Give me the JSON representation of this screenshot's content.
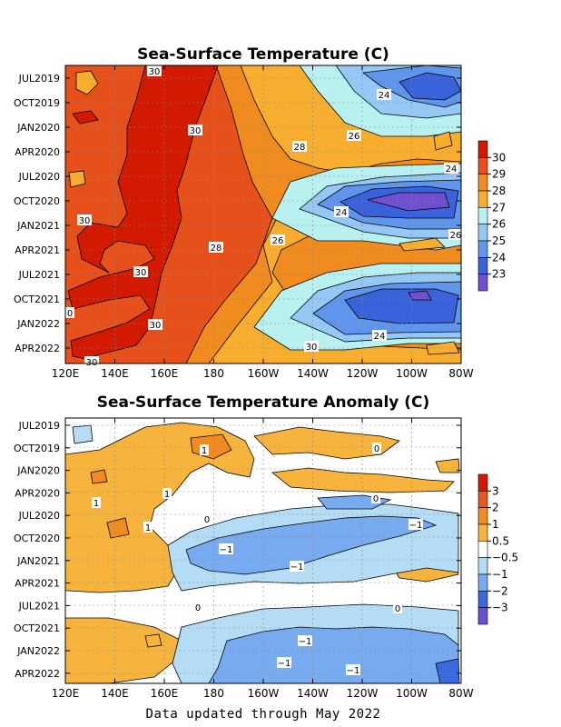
{
  "chart_data": [
    {
      "type": "heatmap",
      "title": "Sea-Surface Temperature (C)",
      "x_tick_labels": [
        "120E",
        "140E",
        "160E",
        "180",
        "160W",
        "140W",
        "120W",
        "100W",
        "80W"
      ],
      "y_tick_labels": [
        "JUL2019",
        "OCT2019",
        "JAN2020",
        "APR2020",
        "JUL2020",
        "OCT2020",
        "JAN2021",
        "APR2021",
        "JUL2021",
        "OCT2021",
        "JAN2022",
        "APR2022"
      ],
      "y_range": [
        "JUN2019",
        "MAY2022"
      ],
      "x_range": [
        "120E",
        "80W"
      ],
      "grid": true,
      "colorbar": {
        "labels": [
          "30",
          "29",
          "28",
          "27",
          "26",
          "25",
          "24",
          "23"
        ],
        "colors": [
          "#d11a00",
          "#e6501a",
          "#f08c1f",
          "#f7ad2e",
          "#b9f0f0",
          "#96c8f5",
          "#5f96ec",
          "#3a62db",
          "#7050d0"
        ]
      },
      "contour_labels": [
        "30",
        "30",
        "30",
        "30",
        "30",
        "30",
        "28",
        "28",
        "26",
        "26",
        "24",
        "24",
        "24",
        "24",
        "26",
        "0",
        "30"
      ]
    },
    {
      "type": "heatmap",
      "title": "Sea-Surface Temperature Anomaly (C)",
      "x_tick_labels": [
        "120E",
        "140E",
        "160E",
        "180",
        "160W",
        "140W",
        "120W",
        "100W",
        "80W"
      ],
      "y_tick_labels": [
        "JUL2019",
        "OCT2019",
        "JAN2020",
        "APR2020",
        "JUL2020",
        "OCT2020",
        "JAN2021",
        "APR2021",
        "JUL2021",
        "OCT2021",
        "JAN2022",
        "APR2022"
      ],
      "y_range": [
        "JUN2019",
        "MAY2022"
      ],
      "x_range": [
        "120E",
        "80W"
      ],
      "grid": true,
      "colorbar": {
        "labels": [
          "3",
          "2",
          "1",
          "0.5",
          "−0.5",
          "−1",
          "−2",
          "−3"
        ],
        "colors": [
          "#d11a00",
          "#e65a1e",
          "#f08c1f",
          "#f7b43c",
          "#ffffff",
          "#b4dcf5",
          "#78aaf0",
          "#3a6ae0",
          "#6a50d0"
        ]
      },
      "contour_labels": [
        "1",
        "1",
        "1",
        "1",
        "0",
        "0",
        "0",
        "−1",
        "−1",
        "−1",
        "−1",
        "−1",
        "−1",
        "0",
        "0"
      ]
    }
  ],
  "footer": "Data updated through May 2022"
}
